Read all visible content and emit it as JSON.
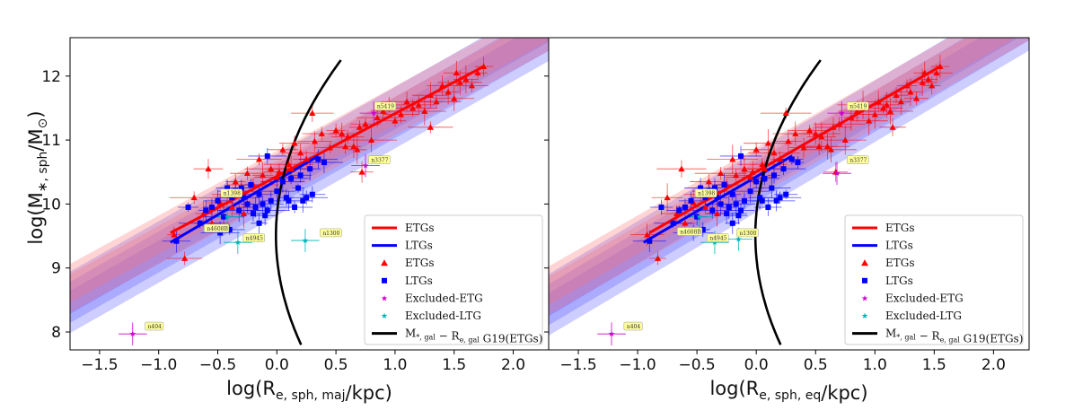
{
  "chart_data": [
    {
      "type": "scatter",
      "xlabel": "log(R_{e, sph, maj}/kpc)",
      "ylabel": "log(M_{*, sph}/M_⊙)",
      "xlim": [
        -1.75,
        2.3
      ],
      "ylim": [
        7.72,
        12.6
      ],
      "xticks": [
        "−1.5",
        "−1.0",
        "−0.5",
        "0.0",
        "0.5",
        "1.0",
        "1.5",
        "2.0"
      ],
      "yticks": [
        "8",
        "9",
        "10",
        "11",
        "12"
      ],
      "legend": [
        "ETGs",
        "LTGs",
        "ETGs",
        "LTGs",
        "Excluded-ETG",
        "Excluded-LTG",
        "M_{*, gal} − R_{e, gal} G19(ETGs)"
      ],
      "etg_fit": {
        "x": [
          -0.9,
          1.75
        ],
        "y": [
          9.55,
          12.15
        ]
      },
      "ltg_fit": {
        "x": [
          -0.9,
          0.35
        ],
        "y": [
          9.4,
          10.75
        ]
      },
      "g19_curve": {
        "y0": 7.8,
        "a": 6.6,
        "b": -1.39,
        "c": 0.0731,
        "ymax": 12.25
      },
      "band_etg": {
        "slope": 1.01,
        "intercept": 10.45,
        "halfwidths": [
          0.22,
          0.38
        ]
      },
      "band_ltg": {
        "slope": 1.05,
        "intercept": 10.3,
        "halfwidths": [
          0.18,
          0.32,
          0.48
        ]
      },
      "etg_points": [
        [
          -0.87,
          9.52
        ],
        [
          -0.7,
          10.1
        ],
        [
          -0.62,
          9.85
        ],
        [
          -0.55,
          9.7
        ],
        [
          -0.48,
          10.02
        ],
        [
          -0.42,
          10.15
        ],
        [
          -0.38,
          9.95
        ],
        [
          -0.35,
          10.35
        ],
        [
          -0.3,
          10.2
        ],
        [
          -0.25,
          10.48
        ],
        [
          -0.2,
          10.3
        ],
        [
          -0.15,
          10.7
        ],
        [
          -0.12,
          10.45
        ],
        [
          -0.05,
          10.55
        ],
        [
          0.0,
          10.42
        ],
        [
          0.05,
          10.85
        ],
        [
          0.1,
          10.62
        ],
        [
          0.15,
          10.95
        ],
        [
          0.2,
          10.8
        ],
        [
          0.25,
          10.7
        ],
        [
          0.3,
          11.42
        ],
        [
          0.32,
          10.98
        ],
        [
          0.38,
          11.1
        ],
        [
          0.45,
          10.88
        ],
        [
          0.5,
          11.15
        ],
        [
          0.55,
          11.1
        ],
        [
          0.6,
          11.05
        ],
        [
          0.65,
          10.9
        ],
        [
          0.7,
          11.2
        ],
        [
          0.75,
          11.25
        ],
        [
          0.8,
          11.0
        ],
        [
          0.85,
          11.35
        ],
        [
          0.9,
          11.45
        ],
        [
          0.95,
          11.55
        ],
        [
          1.0,
          11.3
        ],
        [
          1.05,
          11.4
        ],
        [
          1.1,
          11.6
        ],
        [
          1.15,
          11.5
        ],
        [
          1.2,
          11.55
        ],
        [
          1.25,
          11.45
        ],
        [
          1.3,
          11.7
        ],
        [
          1.35,
          11.6
        ],
        [
          1.4,
          11.85
        ],
        [
          1.45,
          11.75
        ],
        [
          1.5,
          11.65
        ],
        [
          1.55,
          11.9
        ],
        [
          1.6,
          11.95
        ],
        [
          1.65,
          11.85
        ],
        [
          1.7,
          12.05
        ],
        [
          1.75,
          12.15
        ],
        [
          0.58,
          10.9
        ],
        [
          0.68,
          10.85
        ],
        [
          1.3,
          11.2
        ],
        [
          -0.78,
          9.15
        ],
        [
          -0.58,
          10.55
        ],
        [
          0.12,
          10.55
        ],
        [
          0.02,
          10.5
        ],
        [
          0.72,
          10.5
        ],
        [
          1.52,
          12.05
        ],
        [
          -0.28,
          9.85
        ]
      ],
      "ltg_points": [
        [
          -0.85,
          9.42
        ],
        [
          -0.75,
          9.95
        ],
        [
          -0.65,
          9.7
        ],
        [
          -0.6,
          9.9
        ],
        [
          -0.55,
          9.95
        ],
        [
          -0.5,
          10.05
        ],
        [
          -0.45,
          9.8
        ],
        [
          -0.42,
          10.25
        ],
        [
          -0.38,
          10.1
        ],
        [
          -0.35,
          10.2
        ],
        [
          -0.32,
          9.9
        ],
        [
          -0.3,
          10.25
        ],
        [
          -0.28,
          10.1
        ],
        [
          -0.25,
          10.0
        ],
        [
          -0.22,
          10.3
        ],
        [
          -0.2,
          9.85
        ],
        [
          -0.18,
          9.95
        ],
        [
          -0.15,
          10.15
        ],
        [
          -0.12,
          10.0
        ],
        [
          -0.1,
          9.82
        ],
        [
          -0.08,
          9.9
        ],
        [
          -0.05,
          10.05
        ],
        [
          0.0,
          10.2
        ],
        [
          0.05,
          10.35
        ],
        [
          0.08,
          10.1
        ],
        [
          0.1,
          10.05
        ],
        [
          0.15,
          9.95
        ],
        [
          0.2,
          10.45
        ],
        [
          0.22,
          10.05
        ],
        [
          0.25,
          10.1
        ],
        [
          0.28,
          10.55
        ],
        [
          0.3,
          10.15
        ],
        [
          0.35,
          10.7
        ],
        [
          0.4,
          10.65
        ],
        [
          0.18,
          10.25
        ],
        [
          -0.4,
          9.6
        ],
        [
          -0.48,
          9.55
        ],
        [
          -0.15,
          9.7
        ],
        [
          -0.08,
          10.75
        ],
        [
          0.12,
          10.4
        ]
      ],
      "excluded_etg": [
        [
          -1.22,
          7.97
        ],
        [
          0.82,
          11.42
        ],
        [
          0.75,
          10.6
        ]
      ],
      "excluded_ltg": [
        [
          -0.33,
          9.4
        ],
        [
          0.24,
          9.43
        ],
        [
          -0.42,
          9.8
        ]
      ],
      "annotations": [
        {
          "x": -1.1,
          "y": 8.07,
          "text": "n404"
        },
        {
          "x": 0.84,
          "y": 11.51,
          "text": "n5419"
        },
        {
          "x": 0.79,
          "y": 10.67,
          "text": "n3377"
        },
        {
          "x": 0.38,
          "y": 9.53,
          "text": "n1300"
        },
        {
          "x": -0.27,
          "y": 9.45,
          "text": "n4945"
        },
        {
          "x": -0.6,
          "y": 9.6,
          "text": "n4608B"
        },
        {
          "x": -0.46,
          "y": 10.15,
          "text": "n1398"
        }
      ]
    },
    {
      "type": "scatter",
      "xlabel": "log(R_{e, sph, eq}/kpc)",
      "ylabel": "",
      "xlim": [
        -1.75,
        2.3
      ],
      "ylim": [
        7.72,
        12.6
      ],
      "xticks": [
        "−1.5",
        "−1.0",
        "−0.5",
        "0.0",
        "0.5",
        "1.0",
        "1.5",
        "2.0"
      ],
      "yticks": [],
      "legend": [
        "ETGs",
        "LTGs",
        "ETGs",
        "LTGs",
        "Excluded-ETG",
        "Excluded-LTG",
        "M_{*, gal} − R_{e, gal} G19(ETGs)"
      ],
      "etg_fit": {
        "x": [
          -0.9,
          1.55
        ],
        "y": [
          9.55,
          12.15
        ]
      },
      "ltg_fit": {
        "x": [
          -0.95,
          0.3
        ],
        "y": [
          9.4,
          10.75
        ]
      },
      "g19_curve": {
        "y0": 7.8,
        "a": 6.6,
        "b": -1.39,
        "c": 0.0731,
        "ymax": 12.25
      },
      "band_etg": {
        "slope": 1.06,
        "intercept": 10.5,
        "halfwidths": [
          0.22,
          0.38
        ]
      },
      "band_ltg": {
        "slope": 1.1,
        "intercept": 10.35,
        "halfwidths": [
          0.18,
          0.32,
          0.48
        ]
      },
      "etg_points": [
        [
          -0.92,
          9.52
        ],
        [
          -0.75,
          10.1
        ],
        [
          -0.67,
          9.85
        ],
        [
          -0.6,
          9.7
        ],
        [
          -0.53,
          10.02
        ],
        [
          -0.47,
          10.15
        ],
        [
          -0.43,
          9.95
        ],
        [
          -0.4,
          10.35
        ],
        [
          -0.35,
          10.2
        ],
        [
          -0.3,
          10.48
        ],
        [
          -0.25,
          10.3
        ],
        [
          -0.2,
          10.7
        ],
        [
          -0.17,
          10.45
        ],
        [
          -0.1,
          10.55
        ],
        [
          -0.05,
          10.42
        ],
        [
          0.0,
          10.85
        ],
        [
          0.05,
          10.62
        ],
        [
          0.1,
          10.95
        ],
        [
          0.15,
          10.8
        ],
        [
          0.2,
          10.7
        ],
        [
          0.25,
          11.42
        ],
        [
          0.27,
          10.98
        ],
        [
          0.33,
          11.1
        ],
        [
          0.4,
          10.88
        ],
        [
          0.45,
          11.15
        ],
        [
          0.5,
          11.1
        ],
        [
          0.55,
          11.05
        ],
        [
          0.6,
          10.9
        ],
        [
          0.65,
          11.2
        ],
        [
          0.7,
          11.25
        ],
        [
          0.75,
          11.0
        ],
        [
          0.8,
          11.35
        ],
        [
          0.85,
          11.45
        ],
        [
          0.9,
          11.55
        ],
        [
          0.95,
          11.3
        ],
        [
          1.0,
          11.4
        ],
        [
          1.03,
          11.6
        ],
        [
          1.07,
          11.5
        ],
        [
          1.1,
          11.55
        ],
        [
          1.13,
          11.45
        ],
        [
          1.18,
          11.7
        ],
        [
          1.22,
          11.6
        ],
        [
          1.27,
          11.85
        ],
        [
          1.3,
          11.75
        ],
        [
          1.35,
          11.65
        ],
        [
          1.4,
          11.9
        ],
        [
          1.45,
          11.95
        ],
        [
          1.48,
          11.85
        ],
        [
          1.52,
          12.05
        ],
        [
          1.55,
          12.15
        ],
        [
          0.53,
          10.9
        ],
        [
          0.63,
          10.85
        ],
        [
          1.15,
          11.2
        ],
        [
          -0.83,
          9.15
        ],
        [
          -0.63,
          10.55
        ],
        [
          0.07,
          10.55
        ],
        [
          -0.03,
          10.5
        ],
        [
          0.67,
          10.5
        ],
        [
          1.42,
          12.05
        ],
        [
          -0.33,
          9.85
        ]
      ],
      "ltg_points": [
        [
          -0.9,
          9.42
        ],
        [
          -0.8,
          9.95
        ],
        [
          -0.7,
          9.7
        ],
        [
          -0.65,
          9.9
        ],
        [
          -0.6,
          9.95
        ],
        [
          -0.55,
          10.05
        ],
        [
          -0.5,
          9.8
        ],
        [
          -0.47,
          10.25
        ],
        [
          -0.43,
          10.1
        ],
        [
          -0.4,
          10.2
        ],
        [
          -0.37,
          9.9
        ],
        [
          -0.35,
          10.25
        ],
        [
          -0.33,
          10.1
        ],
        [
          -0.3,
          10.0
        ],
        [
          -0.27,
          10.3
        ],
        [
          -0.25,
          9.85
        ],
        [
          -0.23,
          9.95
        ],
        [
          -0.2,
          10.15
        ],
        [
          -0.17,
          10.0
        ],
        [
          -0.15,
          9.82
        ],
        [
          -0.13,
          9.9
        ],
        [
          -0.1,
          10.05
        ],
        [
          -0.05,
          10.2
        ],
        [
          0.0,
          10.35
        ],
        [
          0.03,
          10.1
        ],
        [
          0.05,
          10.05
        ],
        [
          0.1,
          9.95
        ],
        [
          0.15,
          10.45
        ],
        [
          0.17,
          10.05
        ],
        [
          0.2,
          10.1
        ],
        [
          0.23,
          10.55
        ],
        [
          0.25,
          10.15
        ],
        [
          0.3,
          10.7
        ],
        [
          0.35,
          10.65
        ],
        [
          0.13,
          10.25
        ],
        [
          -0.45,
          9.6
        ],
        [
          -0.53,
          9.55
        ],
        [
          -0.2,
          9.7
        ],
        [
          -0.13,
          10.75
        ],
        [
          0.07,
          10.4
        ]
      ],
      "excluded_etg": [
        [
          -1.22,
          7.97
        ],
        [
          0.68,
          10.48
        ],
        [
          0.72,
          11.42
        ]
      ],
      "excluded_ltg": [
        [
          -0.35,
          9.4
        ],
        [
          -0.15,
          9.45
        ],
        [
          -0.48,
          9.8
        ]
      ],
      "annotations": [
        {
          "x": -1.1,
          "y": 8.07,
          "text": "n404"
        },
        {
          "x": 0.78,
          "y": 11.51,
          "text": "n5419"
        },
        {
          "x": 0.78,
          "y": 10.67,
          "text": "n3377"
        },
        {
          "x": -0.15,
          "y": 9.53,
          "text": "n1300"
        },
        {
          "x": -0.4,
          "y": 9.45,
          "text": "n4945"
        },
        {
          "x": -0.65,
          "y": 9.55,
          "text": "n4608B"
        },
        {
          "x": -0.5,
          "y": 10.15,
          "text": "n1398"
        }
      ]
    }
  ],
  "colors": {
    "etg": "#ff0000",
    "ltg": "#0000ff",
    "excluded_etg": "#cc00cc",
    "excluded_ltg": "#00b3b3",
    "g19": "#000000",
    "band_etg": "#ff6f6f",
    "band_ltg": "#5a5aff",
    "annotation_bg": "#ffff99"
  }
}
